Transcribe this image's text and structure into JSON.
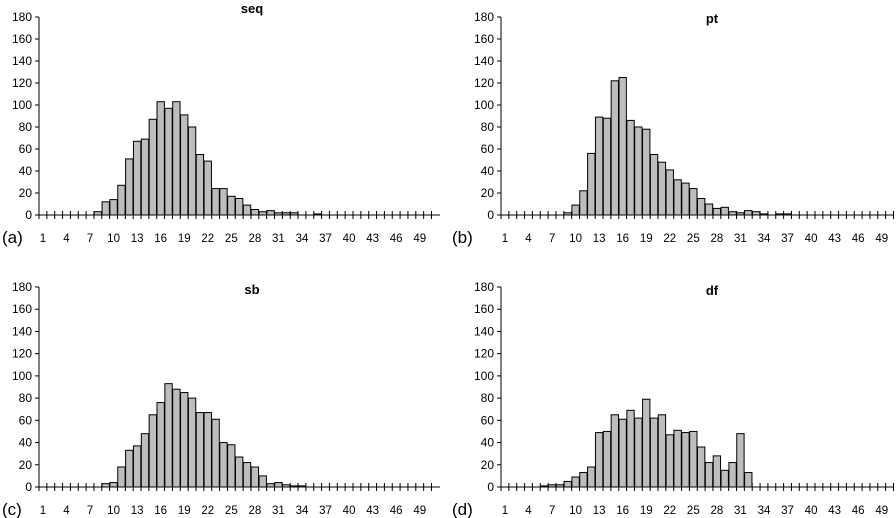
{
  "chart_data": [
    {
      "type": "bar",
      "title": "seq",
      "panel_label": "(a)",
      "ylim": [
        0,
        180
      ],
      "yticks": [
        "0",
        "20",
        "40",
        "60",
        "80",
        "100",
        "120",
        "140",
        "160",
        "180"
      ],
      "xtick_labels": [
        "1",
        "4",
        "7",
        "10",
        "13",
        "16",
        "19",
        "22",
        "25",
        "28",
        "31",
        "34",
        "37",
        "40",
        "43",
        "46",
        "49"
      ],
      "x": [
        1,
        2,
        3,
        4,
        5,
        6,
        7,
        8,
        9,
        10,
        11,
        12,
        13,
        14,
        15,
        16,
        17,
        18,
        19,
        20,
        21,
        22,
        23,
        24,
        25,
        26,
        27,
        28,
        29,
        30,
        31,
        32,
        33,
        34,
        35,
        36,
        37,
        38,
        39,
        40,
        41,
        42,
        43,
        44,
        45,
        46,
        47,
        48,
        49,
        50
      ],
      "values": [
        0,
        0,
        0,
        0,
        0,
        0,
        0,
        3,
        12,
        14,
        27,
        51,
        67,
        69,
        87,
        103,
        97,
        103,
        91,
        80,
        55,
        49,
        24,
        24,
        17,
        15,
        9,
        5,
        3,
        4,
        2,
        2,
        2,
        0,
        0,
        1,
        0,
        0,
        0,
        0,
        0,
        0,
        0,
        0,
        0,
        0,
        0,
        0,
        0,
        0
      ],
      "grid": false
    },
    {
      "type": "bar",
      "title": "pt",
      "panel_label": "(b)",
      "ylim": [
        0,
        180
      ],
      "yticks": [
        "0",
        "20",
        "40",
        "60",
        "80",
        "100",
        "120",
        "140",
        "160",
        "180"
      ],
      "xtick_labels": [
        "1",
        "4",
        "7",
        "10",
        "13",
        "16",
        "19",
        "22",
        "25",
        "28",
        "31",
        "34",
        "37",
        "40",
        "43",
        "46",
        "49"
      ],
      "x": [
        1,
        2,
        3,
        4,
        5,
        6,
        7,
        8,
        9,
        10,
        11,
        12,
        13,
        14,
        15,
        16,
        17,
        18,
        19,
        20,
        21,
        22,
        23,
        24,
        25,
        26,
        27,
        28,
        29,
        30,
        31,
        32,
        33,
        34,
        35,
        36,
        37,
        38,
        39,
        40,
        41,
        42,
        43,
        44,
        45,
        46,
        47,
        48,
        49,
        50
      ],
      "values": [
        0,
        0,
        0,
        0,
        0,
        0,
        0,
        0,
        2,
        9,
        22,
        56,
        89,
        88,
        122,
        125,
        86,
        80,
        78,
        55,
        48,
        41,
        32,
        29,
        24,
        15,
        10,
        6,
        7,
        3,
        2,
        4,
        3,
        1,
        0,
        1,
        1,
        0,
        0,
        0,
        0,
        0,
        0,
        0,
        0,
        0,
        0,
        0,
        0,
        0
      ],
      "grid": false
    },
    {
      "type": "bar",
      "title": "sb",
      "panel_label": "(c)",
      "ylim": [
        0,
        180
      ],
      "yticks": [
        "0",
        "20",
        "40",
        "60",
        "80",
        "100",
        "120",
        "140",
        "160",
        "180"
      ],
      "xtick_labels": [
        "1",
        "4",
        "7",
        "10",
        "13",
        "16",
        "19",
        "22",
        "25",
        "28",
        "31",
        "34",
        "37",
        "40",
        "43",
        "46",
        "49"
      ],
      "x": [
        1,
        2,
        3,
        4,
        5,
        6,
        7,
        8,
        9,
        10,
        11,
        12,
        13,
        14,
        15,
        16,
        17,
        18,
        19,
        20,
        21,
        22,
        23,
        24,
        25,
        26,
        27,
        28,
        29,
        30,
        31,
        32,
        33,
        34,
        35,
        36,
        37,
        38,
        39,
        40,
        41,
        42,
        43,
        44,
        45,
        46,
        47,
        48,
        49,
        50
      ],
      "values": [
        0,
        0,
        0,
        0,
        0,
        0,
        0,
        0,
        3,
        4,
        18,
        33,
        37,
        48,
        65,
        76,
        93,
        88,
        85,
        80,
        67,
        67,
        61,
        40,
        38,
        27,
        22,
        18,
        10,
        3,
        4,
        2,
        1,
        1,
        0,
        0,
        0,
        0,
        0,
        0,
        0,
        0,
        0,
        0,
        0,
        0,
        0,
        0,
        0,
        0
      ],
      "grid": false
    },
    {
      "type": "bar",
      "title": "df",
      "panel_label": "(d)",
      "ylim": [
        0,
        180
      ],
      "yticks": [
        "0",
        "20",
        "40",
        "60",
        "80",
        "100",
        "120",
        "140",
        "160",
        "180"
      ],
      "xtick_labels": [
        "1",
        "4",
        "7",
        "10",
        "13",
        "16",
        "19",
        "22",
        "25",
        "28",
        "31",
        "34",
        "37",
        "40",
        "43",
        "46",
        "49"
      ],
      "x": [
        1,
        2,
        3,
        4,
        5,
        6,
        7,
        8,
        9,
        10,
        11,
        12,
        13,
        14,
        15,
        16,
        17,
        18,
        19,
        20,
        21,
        22,
        23,
        24,
        25,
        26,
        27,
        28,
        29,
        30,
        31,
        32,
        33,
        34,
        35,
        36,
        37,
        38,
        39,
        40,
        41,
        42,
        43,
        44,
        45,
        46,
        47,
        48,
        49,
        50
      ],
      "values": [
        0,
        0,
        0,
        0,
        0,
        1,
        2,
        2,
        5,
        9,
        13,
        18,
        49,
        50,
        65,
        61,
        69,
        62,
        79,
        62,
        65,
        47,
        51,
        49,
        50,
        36,
        22,
        28,
        15,
        22,
        48,
        13,
        0,
        0,
        0,
        0,
        0,
        0,
        0,
        0,
        0,
        0,
        0,
        0,
        0,
        0,
        0,
        0,
        0,
        0
      ],
      "grid": false
    }
  ],
  "colors": {
    "bar_fill": "#bdbdbd",
    "bar_stroke": "#000000",
    "axis": "#000000"
  }
}
